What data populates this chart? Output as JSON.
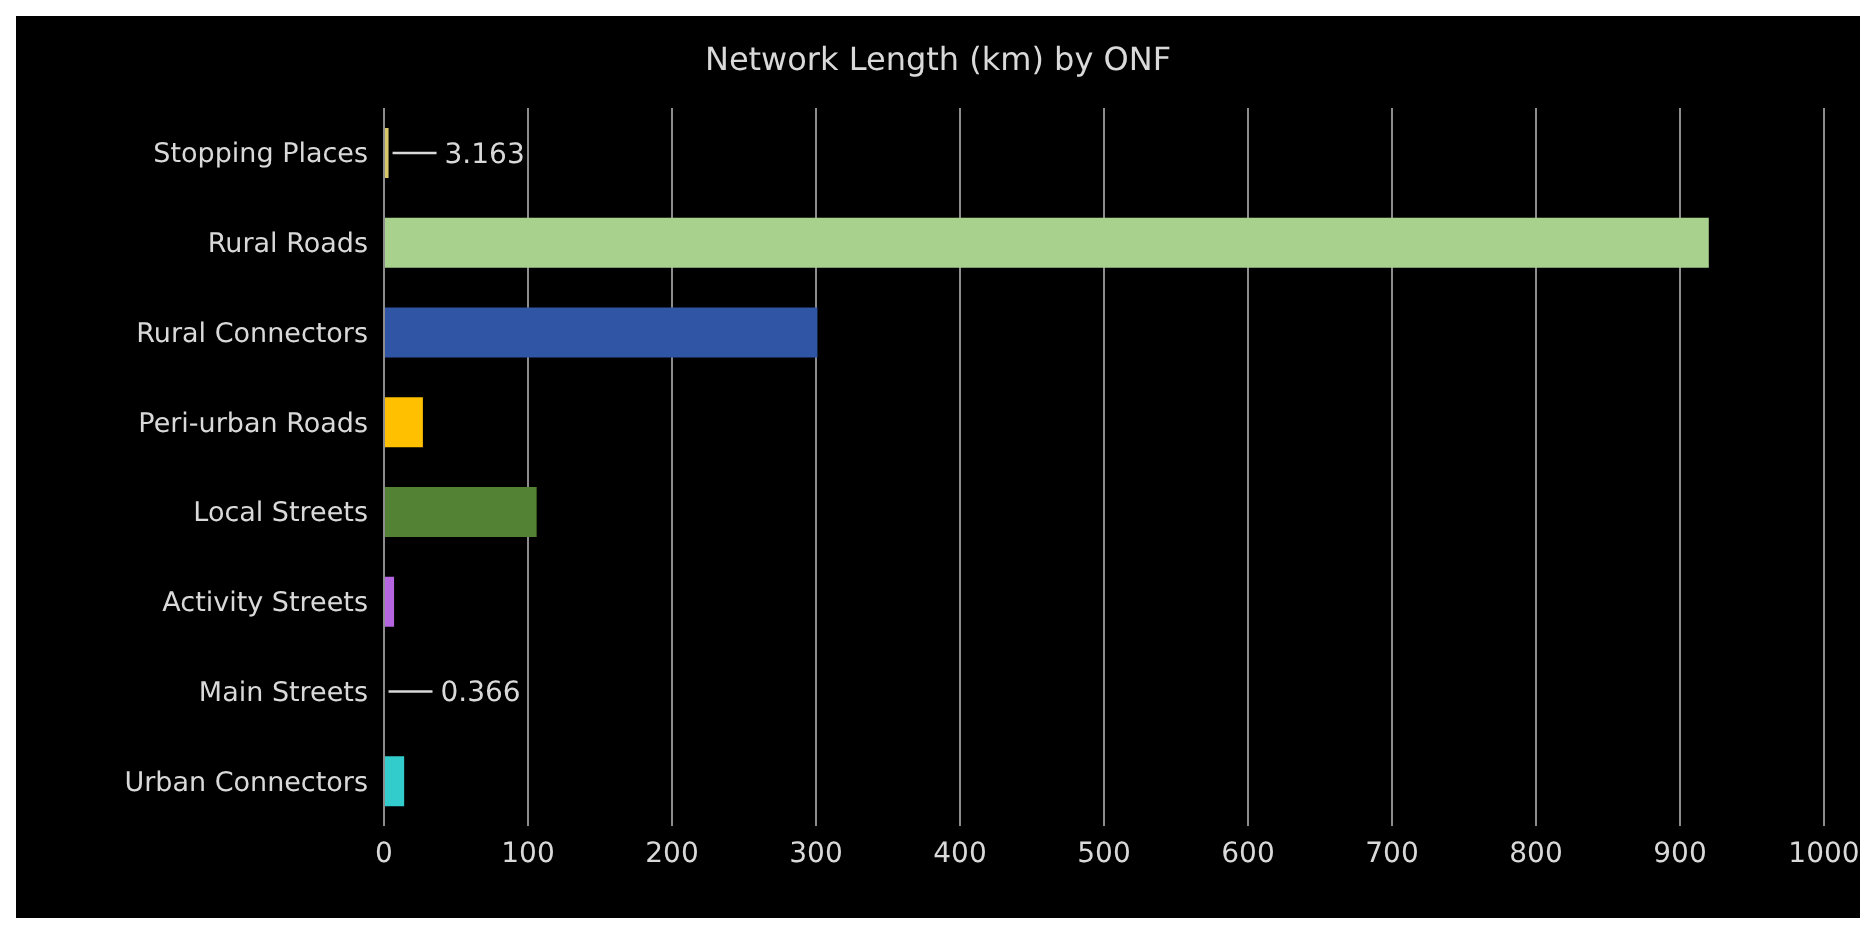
{
  "chart_data": {
    "type": "bar",
    "orientation": "horizontal",
    "title": "Network Length (km) by ONF",
    "categories": [
      "Stopping Places",
      "Rural Roads",
      "Rural Connectors",
      "Peri-urban Roads",
      "Local Streets",
      "Activity Streets",
      "Main Streets",
      "Urban Connectors"
    ],
    "values": [
      3.163,
      920,
      301,
      27,
      106,
      7,
      0.366,
      14
    ],
    "colors": [
      "#d9c86a",
      "#a9d18e",
      "#2f55a4",
      "#ffc000",
      "#548235",
      "#b565e0",
      "#a0a0a0",
      "#33cccc"
    ],
    "value_labels": [
      "3.163",
      null,
      null,
      null,
      null,
      null,
      "0.366",
      null
    ],
    "xlim": [
      0,
      1000
    ],
    "xticks": [
      0,
      100,
      200,
      300,
      400,
      500,
      600,
      700,
      800,
      900,
      1000
    ],
    "grid": "x"
  }
}
